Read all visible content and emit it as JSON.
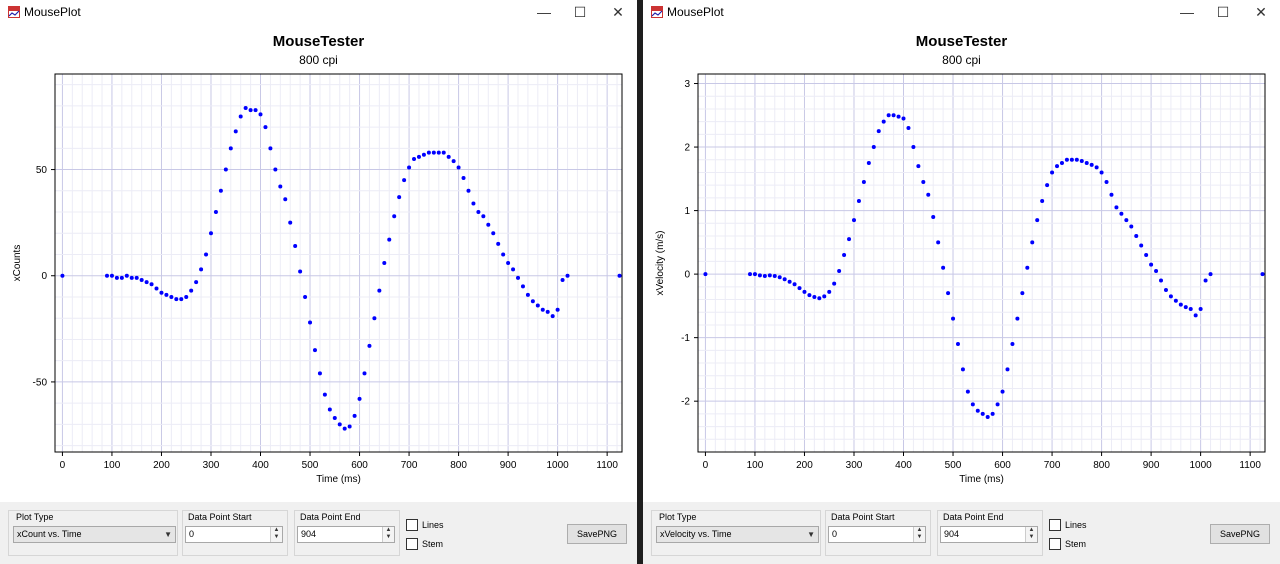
{
  "windows": [
    {
      "title": "MousePlot",
      "chart_title": "MouseTester",
      "chart_subtitle": "800 cpi",
      "controls": {
        "plot_type_label": "Plot Type",
        "plot_type_value": "xCount vs. Time",
        "start_label": "Data Point Start",
        "start_value": "0",
        "end_label": "Data Point End",
        "end_value": "904",
        "lines_label": "Lines",
        "stem_label": "Stem",
        "save_label": "SavePNG"
      },
      "chart_data": {
        "type": "scatter",
        "xlabel": "Time (ms)",
        "ylabel": "xCounts",
        "xlim": [
          -15,
          1130
        ],
        "ylim": [
          -83,
          95
        ],
        "xticks": [
          0,
          100,
          200,
          300,
          400,
          500,
          600,
          700,
          800,
          900,
          1000,
          1100
        ],
        "yticks": [
          -50,
          0,
          50
        ],
        "grid": true,
        "series": [
          {
            "color": "#0000ff",
            "x": [
              0,
              90,
              100,
              110,
              120,
              130,
              140,
              150,
              160,
              170,
              180,
              190,
              200,
              210,
              220,
              230,
              240,
              250,
              260,
              270,
              280,
              290,
              300,
              310,
              320,
              330,
              340,
              350,
              360,
              370,
              380,
              390,
              400,
              410,
              420,
              430,
              440,
              450,
              460,
              470,
              480,
              490,
              500,
              510,
              520,
              530,
              540,
              550,
              560,
              570,
              580,
              590,
              600,
              610,
              620,
              630,
              640,
              650,
              660,
              670,
              680,
              690,
              700,
              710,
              720,
              730,
              740,
              750,
              760,
              770,
              780,
              790,
              800,
              810,
              820,
              830,
              840,
              850,
              860,
              870,
              880,
              890,
              900,
              910,
              920,
              930,
              940,
              950,
              960,
              970,
              980,
              990,
              1000,
              1010,
              1020,
              1125
            ],
            "y": [
              0,
              0,
              0,
              -1,
              -1,
              0,
              -1,
              -1,
              -2,
              -3,
              -4,
              -6,
              -8,
              -9,
              -10,
              -11,
              -11,
              -10,
              -7,
              -3,
              3,
              10,
              20,
              30,
              40,
              50,
              60,
              68,
              75,
              79,
              78,
              78,
              76,
              70,
              60,
              50,
              42,
              36,
              25,
              14,
              2,
              -10,
              -22,
              -35,
              -46,
              -56,
              -63,
              -67,
              -70,
              -72,
              -71,
              -66,
              -58,
              -46,
              -33,
              -20,
              -7,
              6,
              17,
              28,
              37,
              45,
              51,
              55,
              56,
              57,
              58,
              58,
              58,
              58,
              56,
              54,
              51,
              46,
              40,
              34,
              30,
              28,
              24,
              20,
              15,
              10,
              6,
              3,
              -1,
              -5,
              -9,
              -12,
              -14,
              -16,
              -17,
              -19,
              -16,
              -2,
              0,
              0
            ]
          }
        ]
      }
    },
    {
      "title": "MousePlot",
      "chart_title": "MouseTester",
      "chart_subtitle": "800 cpi",
      "controls": {
        "plot_type_label": "Plot Type",
        "plot_type_value": "xVelocity vs. Time",
        "start_label": "Data Point Start",
        "start_value": "0",
        "end_label": "Data Point End",
        "end_value": "904",
        "lines_label": "Lines",
        "stem_label": "Stem",
        "save_label": "SavePNG"
      },
      "chart_data": {
        "type": "scatter",
        "xlabel": "Time (ms)",
        "ylabel": "xVelocity (m/s)",
        "xlim": [
          -15,
          1130
        ],
        "ylim": [
          -2.8,
          3.15
        ],
        "xticks": [
          0,
          100,
          200,
          300,
          400,
          500,
          600,
          700,
          800,
          900,
          1000,
          1100
        ],
        "yticks": [
          -2,
          -1,
          0,
          1,
          2,
          3
        ],
        "grid": true,
        "series": [
          {
            "color": "#0000ff",
            "x": [
              0,
              90,
              100,
              110,
              120,
              130,
              140,
              150,
              160,
              170,
              180,
              190,
              200,
              210,
              220,
              230,
              240,
              250,
              260,
              270,
              280,
              290,
              300,
              310,
              320,
              330,
              340,
              350,
              360,
              370,
              380,
              390,
              400,
              410,
              420,
              430,
              440,
              450,
              460,
              470,
              480,
              490,
              500,
              510,
              520,
              530,
              540,
              550,
              560,
              570,
              580,
              590,
              600,
              610,
              620,
              630,
              640,
              650,
              660,
              670,
              680,
              690,
              700,
              710,
              720,
              730,
              740,
              750,
              760,
              770,
              780,
              790,
              800,
              810,
              820,
              830,
              840,
              850,
              860,
              870,
              880,
              890,
              900,
              910,
              920,
              930,
              940,
              950,
              960,
              970,
              980,
              990,
              1000,
              1010,
              1020,
              1125
            ],
            "y": [
              0,
              0,
              0,
              -0.02,
              -0.03,
              -0.02,
              -0.03,
              -0.05,
              -0.08,
              -0.12,
              -0.16,
              -0.22,
              -0.28,
              -0.33,
              -0.36,
              -0.38,
              -0.35,
              -0.28,
              -0.15,
              0.05,
              0.3,
              0.55,
              0.85,
              1.15,
              1.45,
              1.75,
              2.0,
              2.25,
              2.4,
              2.5,
              2.5,
              2.48,
              2.45,
              2.3,
              2.0,
              1.7,
              1.45,
              1.25,
              0.9,
              0.5,
              0.1,
              -0.3,
              -0.7,
              -1.1,
              -1.5,
              -1.85,
              -2.05,
              -2.15,
              -2.2,
              -2.25,
              -2.2,
              -2.05,
              -1.85,
              -1.5,
              -1.1,
              -0.7,
              -0.3,
              0.1,
              0.5,
              0.85,
              1.15,
              1.4,
              1.6,
              1.7,
              1.75,
              1.8,
              1.8,
              1.8,
              1.78,
              1.75,
              1.72,
              1.68,
              1.6,
              1.45,
              1.25,
              1.05,
              0.95,
              0.85,
              0.75,
              0.6,
              0.45,
              0.3,
              0.15,
              0.05,
              -0.1,
              -0.25,
              -0.35,
              -0.42,
              -0.48,
              -0.52,
              -0.55,
              -0.65,
              -0.55,
              -0.1,
              0,
              0
            ]
          }
        ]
      }
    }
  ]
}
